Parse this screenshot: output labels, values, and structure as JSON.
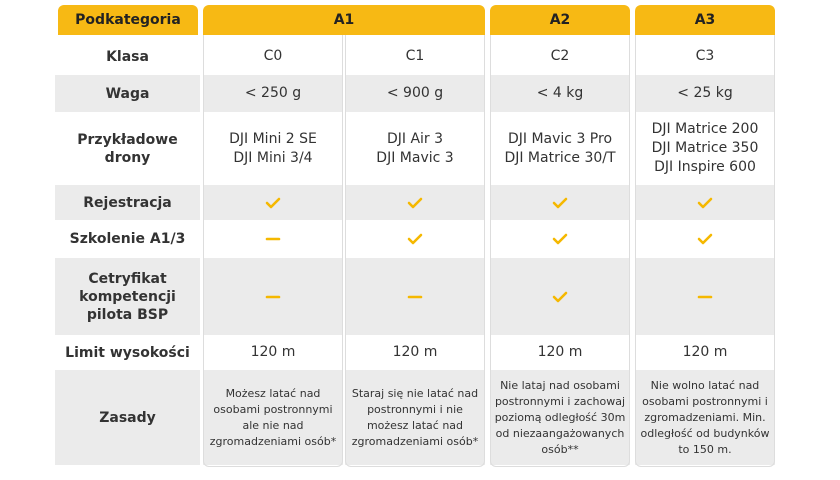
{
  "header": [
    "Podkategoria",
    "A1",
    "A2",
    "A3"
  ],
  "rows": [
    {
      "label": "Klasa",
      "cells": [
        "C0",
        "C1",
        "C2",
        "C3"
      ]
    },
    {
      "label": "Waga",
      "cells": [
        "< 250 g",
        "< 900 g",
        "< 4 kg",
        "< 25 kg"
      ]
    },
    {
      "label": "Przykładowe\ndrony",
      "cells": [
        "DJI Mini 2 SE\nDJI Mini 3/4",
        "DJI Air 3\nDJI Mavic 3",
        "DJI Mavic 3 Pro\nDJI Matrice 30/T",
        "DJI Matrice 200\nDJI Matrice 350\nDJI Inspire 600"
      ]
    },
    {
      "label": "Rejestracja"
    },
    {
      "label": "Szkolenie A1/3"
    },
    {
      "label": "Cetryfikat\nkompetencji\npilota BSP"
    },
    {
      "label": "Limit wysokości",
      "cells": [
        "120 m",
        "120 m",
        "120 m",
        "120 m"
      ]
    },
    {
      "label": "Zasady",
      "cells": [
        "Możesz latać nad\nosobami postronnymi\nale nie nad\nzgromadzeniami osób*",
        "Staraj się nie latać nad\npostronnymi i nie\nmożesz latać nad\nzgromadzeniami osób*",
        "Nie lataj nad osobami\npostronnymi i zachowaj\npoziomą odległość 30m\nod niezaangażowanych\nosób**",
        "Nie wolno latać nad\nosobami postronnymi i\nzgromadzeniami. Min.\nodległość od budynków\nto 150 m."
      ]
    }
  ]
}
